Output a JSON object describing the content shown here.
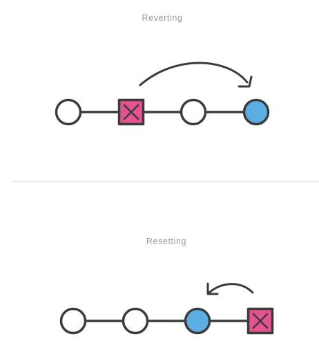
{
  "sections": {
    "reverting": {
      "title": "Reverting",
      "commits": [
        {
          "kind": "commit",
          "state": "normal"
        },
        {
          "kind": "commit",
          "state": "undone"
        },
        {
          "kind": "commit",
          "state": "normal"
        },
        {
          "kind": "commit",
          "state": "current"
        }
      ],
      "arrow": "forward"
    },
    "resetting": {
      "title": "Resetting",
      "commits": [
        {
          "kind": "commit",
          "state": "normal"
        },
        {
          "kind": "commit",
          "state": "normal"
        },
        {
          "kind": "commit",
          "state": "current"
        },
        {
          "kind": "commit",
          "state": "undone"
        }
      ],
      "arrow": "backward"
    }
  },
  "colors": {
    "stroke": "#3b3b3b",
    "current_fill": "#5aaee2",
    "undone_fill": "#e5538f",
    "normal_fill": "#ffffff",
    "divider": "#e6e6e6",
    "title_text": "#999999"
  },
  "icons": {
    "undone": "x-mark-icon",
    "arrow": "curved-arrow-icon"
  }
}
